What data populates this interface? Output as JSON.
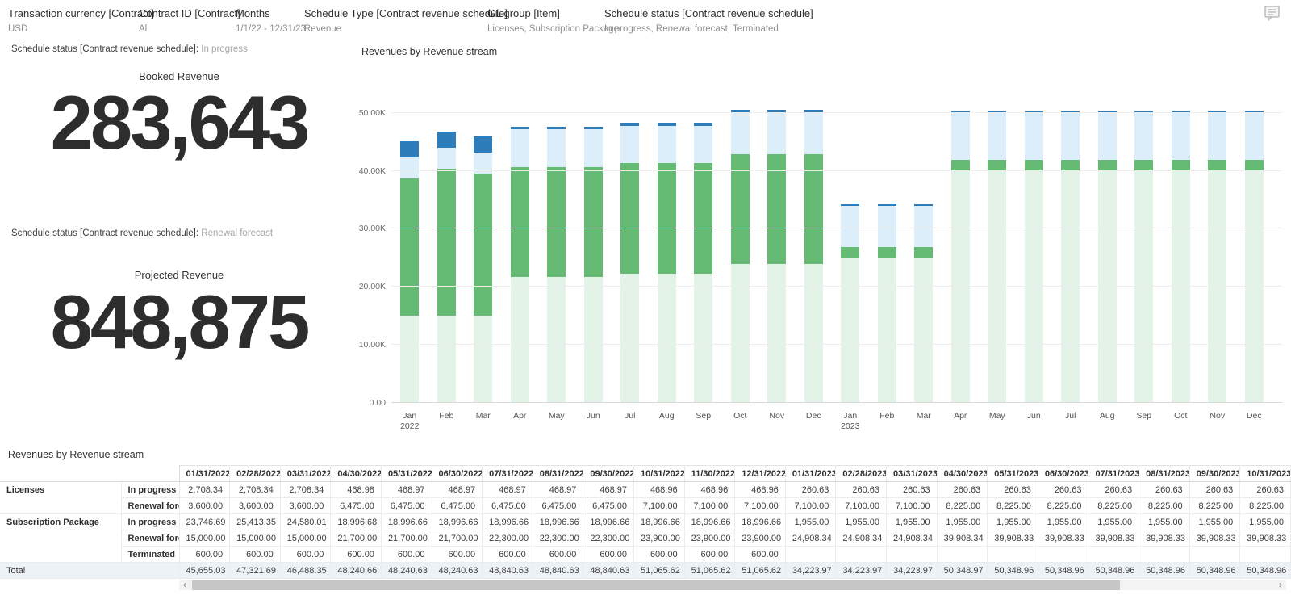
{
  "filters": {
    "items": [
      {
        "key": "transaction-currency",
        "label": "Transaction currency [Contract]",
        "value": "USD"
      },
      {
        "key": "contract-id",
        "label": "Contract ID [Contract]",
        "value": "All"
      },
      {
        "key": "months",
        "label": "Months",
        "value": "1/1/22 - 12/31/23"
      },
      {
        "key": "schedule-type",
        "label": "Schedule Type [Contract revenue schedule]",
        "value": "Revenue"
      },
      {
        "key": "gl-group",
        "label": "GL group [Item]",
        "value": "Licenses, Subscription Package"
      },
      {
        "key": "schedule-status",
        "label": "Schedule status [Contract revenue schedule]",
        "value": "In progress, Renewal forecast, Terminated"
      }
    ]
  },
  "header": {
    "comment_icon": "comment-icon"
  },
  "kpis": {
    "booked": {
      "context_label": "Schedule status [Contract revenue schedule]:",
      "context_value": " In progress",
      "title": "Booked Revenue",
      "value": "283,643"
    },
    "projected": {
      "context_label": "Schedule status [Contract revenue schedule]:",
      "context_value": " Renewal forecast",
      "title": "Projected Revenue",
      "value": "848,875"
    }
  },
  "chart_data": {
    "type": "bar",
    "stacked": true,
    "title": "Revenues by Revenue stream",
    "legend_position": "none",
    "grid": true,
    "ylim": [
      0,
      51500
    ],
    "yticks": [
      {
        "label": "50.00K",
        "value": 50000
      },
      {
        "label": "40.00K",
        "value": 40000
      },
      {
        "label": "30.00K",
        "value": 30000
      },
      {
        "label": "20.00K",
        "value": 20000
      },
      {
        "label": "10.00K",
        "value": 10000
      },
      {
        "label": "0.00",
        "value": 0
      }
    ],
    "x": [
      {
        "label": "Jan",
        "year": "2022"
      },
      {
        "label": "Feb"
      },
      {
        "label": "Mar"
      },
      {
        "label": "Apr"
      },
      {
        "label": "May"
      },
      {
        "label": "Jun"
      },
      {
        "label": "Jul"
      },
      {
        "label": "Aug"
      },
      {
        "label": "Sep"
      },
      {
        "label": "Oct"
      },
      {
        "label": "Nov"
      },
      {
        "label": "Dec"
      },
      {
        "label": "Jan",
        "year": "2023"
      },
      {
        "label": "Feb"
      },
      {
        "label": "Mar"
      },
      {
        "label": "Apr"
      },
      {
        "label": "May"
      },
      {
        "label": "Jun"
      },
      {
        "label": "Jul"
      },
      {
        "label": "Aug"
      },
      {
        "label": "Sep"
      },
      {
        "label": "Oct"
      },
      {
        "label": "Nov"
      },
      {
        "label": "Dec"
      }
    ],
    "series": [
      {
        "key": "subscription-package-renewal-forecast",
        "name": "Subscription Package - Renewal forecast",
        "color": "#e3f3e7",
        "in_chart": true,
        "values": [
          15000,
          15000,
          15000,
          21700,
          21700,
          21700,
          22300,
          22300,
          22300,
          23900,
          23900,
          23900,
          24908.34,
          24908.34,
          24908.34,
          39908.34,
          39908.33,
          39908.33,
          39908.33,
          39908.33,
          39908.33,
          39908.33,
          39908.33,
          39908.33
        ]
      },
      {
        "key": "subscription-package-in-progress",
        "name": "Subscription Package - In progress",
        "color": "#65ba74",
        "in_chart": true,
        "values": [
          23746.69,
          25413.35,
          24580.01,
          18996.68,
          18996.66,
          18996.66,
          18996.66,
          18996.66,
          18996.66,
          18996.66,
          18996.66,
          18996.66,
          1955,
          1955,
          1955,
          1955,
          1955,
          1955,
          1955,
          1955,
          1955,
          1955,
          1955,
          1955
        ]
      },
      {
        "key": "licenses-renewal-forecast",
        "name": "Licenses - Renewal forecast",
        "color": "#ddeefb",
        "in_chart": true,
        "values": [
          3600,
          3600,
          3600,
          6475,
          6475,
          6475,
          6475,
          6475,
          6475,
          7100,
          7100,
          7100,
          7100,
          7100,
          7100,
          8225,
          8225,
          8225,
          8225,
          8225,
          8225,
          8225,
          8225,
          8225
        ]
      },
      {
        "key": "licenses-in-progress",
        "name": "Licenses - In progress",
        "color": "#2d7dbb",
        "in_chart": true,
        "values": [
          2708.34,
          2708.34,
          2708.34,
          468.98,
          468.97,
          468.97,
          468.97,
          468.97,
          468.97,
          468.96,
          468.96,
          468.96,
          260.63,
          260.63,
          260.63,
          260.63,
          260.63,
          260.63,
          260.63,
          260.63,
          260.63,
          260.63,
          260.63,
          260.63
        ]
      },
      {
        "key": "subscription-package-terminated",
        "name": "Subscription Package - Terminated",
        "color": null,
        "in_chart": false,
        "values": [
          600,
          600,
          600,
          600,
          600,
          600,
          600,
          600,
          600,
          600,
          600,
          600,
          0,
          0,
          0,
          0,
          0,
          0,
          0,
          0,
          0,
          0,
          0,
          0
        ]
      }
    ]
  },
  "table": {
    "title": "Revenues by Revenue stream",
    "columns": [
      "01/31/2022",
      "02/28/2022",
      "03/31/2022",
      "04/30/2022",
      "05/31/2022",
      "06/30/2022",
      "07/31/2022",
      "08/31/2022",
      "09/30/2022",
      "10/31/2022",
      "11/30/2022",
      "12/31/2022",
      "01/31/2023",
      "02/28/2023",
      "03/31/2023",
      "04/30/2023",
      "05/31/2023",
      "06/30/2023",
      "07/31/2023",
      "08/31/2023",
      "09/30/2023",
      "10/31/2023"
    ],
    "rows": [
      {
        "group": "Licenses",
        "group_rowspan": 2,
        "status": "In progress",
        "values": [
          "2,708.34",
          "2,708.34",
          "2,708.34",
          "468.98",
          "468.97",
          "468.97",
          "468.97",
          "468.97",
          "468.97",
          "468.96",
          "468.96",
          "468.96",
          "260.63",
          "260.63",
          "260.63",
          "260.63",
          "260.63",
          "260.63",
          "260.63",
          "260.63",
          "260.63",
          "260.63"
        ]
      },
      {
        "status": "Renewal forecast",
        "values": [
          "3,600.00",
          "3,600.00",
          "3,600.00",
          "6,475.00",
          "6,475.00",
          "6,475.00",
          "6,475.00",
          "6,475.00",
          "6,475.00",
          "7,100.00",
          "7,100.00",
          "7,100.00",
          "7,100.00",
          "7,100.00",
          "7,100.00",
          "8,225.00",
          "8,225.00",
          "8,225.00",
          "8,225.00",
          "8,225.00",
          "8,225.00",
          "8,225.00"
        ]
      },
      {
        "group": "Subscription Package",
        "group_rowspan": 3,
        "status": "In progress",
        "values": [
          "23,746.69",
          "25,413.35",
          "24,580.01",
          "18,996.68",
          "18,996.66",
          "18,996.66",
          "18,996.66",
          "18,996.66",
          "18,996.66",
          "18,996.66",
          "18,996.66",
          "18,996.66",
          "1,955.00",
          "1,955.00",
          "1,955.00",
          "1,955.00",
          "1,955.00",
          "1,955.00",
          "1,955.00",
          "1,955.00",
          "1,955.00",
          "1,955.00"
        ]
      },
      {
        "status": "Renewal forecast",
        "values": [
          "15,000.00",
          "15,000.00",
          "15,000.00",
          "21,700.00",
          "21,700.00",
          "21,700.00",
          "22,300.00",
          "22,300.00",
          "22,300.00",
          "23,900.00",
          "23,900.00",
          "23,900.00",
          "24,908.34",
          "24,908.34",
          "24,908.34",
          "39,908.34",
          "39,908.33",
          "39,908.33",
          "39,908.33",
          "39,908.33",
          "39,908.33",
          "39,908.33"
        ]
      },
      {
        "status": "Terminated",
        "values": [
          "600.00",
          "600.00",
          "600.00",
          "600.00",
          "600.00",
          "600.00",
          "600.00",
          "600.00",
          "600.00",
          "600.00",
          "600.00",
          "600.00",
          "",
          "",
          "",
          "",
          "",
          "",
          "",
          "",
          "",
          ""
        ]
      }
    ],
    "total_row": {
      "label": "Total",
      "values": [
        "45,655.03",
        "47,321.69",
        "46,488.35",
        "48,240.66",
        "48,240.63",
        "48,240.63",
        "48,840.63",
        "48,840.63",
        "48,840.63",
        "51,065.62",
        "51,065.62",
        "51,065.62",
        "34,223.97",
        "34,223.97",
        "34,223.97",
        "50,348.97",
        "50,348.96",
        "50,348.96",
        "50,348.96",
        "50,348.96",
        "50,348.96",
        "50,348.96"
      ]
    },
    "scrollbar": {
      "left_arrow": "‹",
      "right_arrow": "›"
    }
  }
}
